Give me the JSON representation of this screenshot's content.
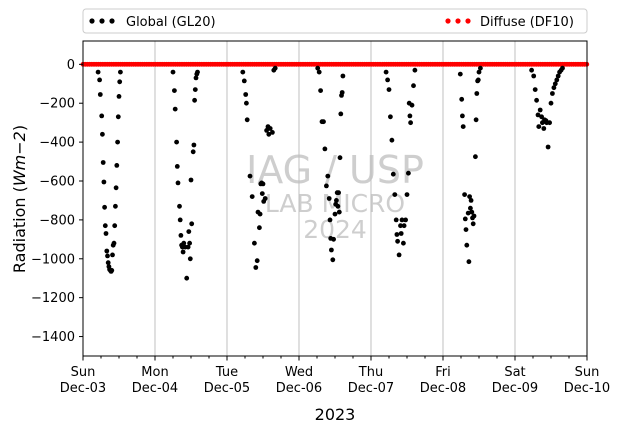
{
  "chart_data": {
    "type": "scatter",
    "title": "",
    "xlabel": "2023",
    "ylabel_prefix": "Radiation (",
    "ylabel_unit": "Wm−2",
    "ylabel_suffix": ")",
    "ylim": [
      -1500,
      120
    ],
    "xlim": [
      0,
      7
    ],
    "y_ticks": [
      0,
      -200,
      -400,
      -600,
      -800,
      -1000,
      -1200,
      -1400
    ],
    "x_ticks": [
      {
        "x": 0,
        "day": "Sun",
        "date": "Dec-03"
      },
      {
        "x": 1,
        "day": "Mon",
        "date": "Dec-04"
      },
      {
        "x": 2,
        "day": "Tue",
        "date": "Dec-05"
      },
      {
        "x": 3,
        "day": "Wed",
        "date": "Dec-06"
      },
      {
        "x": 4,
        "day": "Thu",
        "date": "Dec-07"
      },
      {
        "x": 5,
        "day": "Fri",
        "date": "Dec-08"
      },
      {
        "x": 6,
        "day": "Sat",
        "date": "Dec-09"
      },
      {
        "x": 7,
        "day": "Sun",
        "date": "Dec-10"
      }
    ],
    "grid": "vertical",
    "legend": "above",
    "series": [
      {
        "name": "Global (GL20)",
        "color": "#000000",
        "points": [
          [
            0.21,
            -40
          ],
          [
            0.23,
            -80
          ],
          [
            0.24,
            -155
          ],
          [
            0.26,
            -265
          ],
          [
            0.27,
            -360
          ],
          [
            0.28,
            -505
          ],
          [
            0.29,
            -605
          ],
          [
            0.3,
            -735
          ],
          [
            0.31,
            -830
          ],
          [
            0.32,
            -870
          ],
          [
            0.33,
            -960
          ],
          [
            0.34,
            -985
          ],
          [
            0.35,
            -1020
          ],
          [
            0.36,
            -1040
          ],
          [
            0.37,
            -1055
          ],
          [
            0.38,
            -1060
          ],
          [
            0.39,
            -1065
          ],
          [
            0.4,
            -1060
          ],
          [
            0.41,
            -980
          ],
          [
            0.42,
            -930
          ],
          [
            0.43,
            -920
          ],
          [
            0.44,
            -830
          ],
          [
            0.45,
            -730
          ],
          [
            0.46,
            -635
          ],
          [
            0.47,
            -520
          ],
          [
            0.48,
            -400
          ],
          [
            0.49,
            -270
          ],
          [
            0.5,
            -165
          ],
          [
            0.51,
            -90
          ],
          [
            0.52,
            -40
          ],
          [
            1.25,
            -40
          ],
          [
            1.27,
            -135
          ],
          [
            1.28,
            -230
          ],
          [
            1.3,
            -400
          ],
          [
            1.31,
            -525
          ],
          [
            1.32,
            -610
          ],
          [
            1.34,
            -730
          ],
          [
            1.35,
            -800
          ],
          [
            1.36,
            -880
          ],
          [
            1.37,
            -930
          ],
          [
            1.38,
            -940
          ],
          [
            1.39,
            -965
          ],
          [
            1.4,
            -920
          ],
          [
            1.42,
            -940
          ],
          [
            1.44,
            -1100
          ],
          [
            1.46,
            -940
          ],
          [
            1.47,
            -860
          ],
          [
            1.48,
            -920
          ],
          [
            1.49,
            -1000
          ],
          [
            1.5,
            -595
          ],
          [
            1.51,
            -820
          ],
          [
            1.53,
            -450
          ],
          [
            1.54,
            -415
          ],
          [
            1.55,
            -185
          ],
          [
            1.56,
            -130
          ],
          [
            1.57,
            -70
          ],
          [
            1.58,
            -50
          ],
          [
            1.59,
            -40
          ],
          [
            2.22,
            -40
          ],
          [
            2.24,
            -85
          ],
          [
            2.26,
            -155
          ],
          [
            2.27,
            -200
          ],
          [
            2.28,
            -285
          ],
          [
            2.32,
            -575
          ],
          [
            2.35,
            -680
          ],
          [
            2.38,
            -920
          ],
          [
            2.4,
            -1045
          ],
          [
            2.42,
            -1010
          ],
          [
            2.43,
            -760
          ],
          [
            2.45,
            -840
          ],
          [
            2.46,
            -770
          ],
          [
            2.47,
            -615
          ],
          [
            2.48,
            -610
          ],
          [
            2.49,
            -665
          ],
          [
            2.5,
            -615
          ],
          [
            2.51,
            -705
          ],
          [
            2.53,
            -690
          ],
          [
            2.55,
            -340
          ],
          [
            2.57,
            -320
          ],
          [
            2.58,
            -360
          ],
          [
            2.6,
            -330
          ],
          [
            2.63,
            -350
          ],
          [
            2.65,
            -30
          ],
          [
            2.67,
            -20
          ],
          [
            3.26,
            -20
          ],
          [
            3.28,
            -40
          ],
          [
            3.3,
            -135
          ],
          [
            3.32,
            -295
          ],
          [
            3.34,
            -295
          ],
          [
            3.36,
            -435
          ],
          [
            3.38,
            -625
          ],
          [
            3.4,
            -575
          ],
          [
            3.42,
            -690
          ],
          [
            3.43,
            -800
          ],
          [
            3.44,
            -895
          ],
          [
            3.45,
            -955
          ],
          [
            3.47,
            -1005
          ],
          [
            3.48,
            -900
          ],
          [
            3.5,
            -770
          ],
          [
            3.51,
            -720
          ],
          [
            3.52,
            -700
          ],
          [
            3.53,
            -660
          ],
          [
            3.54,
            -730
          ],
          [
            3.55,
            -660
          ],
          [
            3.56,
            -760
          ],
          [
            3.57,
            -480
          ],
          [
            3.58,
            -255
          ],
          [
            3.59,
            -160
          ],
          [
            3.6,
            -145
          ],
          [
            3.61,
            -60
          ],
          [
            4.21,
            -40
          ],
          [
            4.23,
            -80
          ],
          [
            4.25,
            -130
          ],
          [
            4.27,
            -270
          ],
          [
            4.29,
            -390
          ],
          [
            4.31,
            -565
          ],
          [
            4.33,
            -670
          ],
          [
            4.35,
            -800
          ],
          [
            4.36,
            -875
          ],
          [
            4.37,
            -910
          ],
          [
            4.39,
            -980
          ],
          [
            4.41,
            -830
          ],
          [
            4.42,
            -870
          ],
          [
            4.43,
            -800
          ],
          [
            4.45,
            -920
          ],
          [
            4.46,
            -830
          ],
          [
            4.48,
            -800
          ],
          [
            4.5,
            -670
          ],
          [
            4.52,
            -560
          ],
          [
            4.53,
            -200
          ],
          [
            4.54,
            -265
          ],
          [
            4.55,
            -300
          ],
          [
            4.57,
            -210
          ],
          [
            4.59,
            -110
          ],
          [
            4.61,
            -30
          ],
          [
            5.24,
            -50
          ],
          [
            5.26,
            -180
          ],
          [
            5.27,
            -265
          ],
          [
            5.28,
            -320
          ],
          [
            5.3,
            -670
          ],
          [
            5.31,
            -795
          ],
          [
            5.32,
            -850
          ],
          [
            5.33,
            -930
          ],
          [
            5.35,
            -765
          ],
          [
            5.36,
            -1015
          ],
          [
            5.37,
            -680
          ],
          [
            5.38,
            -740
          ],
          [
            5.39,
            -700
          ],
          [
            5.4,
            -760
          ],
          [
            5.41,
            -790
          ],
          [
            5.42,
            -820
          ],
          [
            5.43,
            -780
          ],
          [
            5.45,
            -475
          ],
          [
            5.46,
            -285
          ],
          [
            5.47,
            -150
          ],
          [
            5.48,
            -85
          ],
          [
            5.49,
            -80
          ],
          [
            5.5,
            -40
          ],
          [
            5.52,
            -20
          ],
          [
            6.23,
            -30
          ],
          [
            6.26,
            -60
          ],
          [
            6.28,
            -130
          ],
          [
            6.3,
            -185
          ],
          [
            6.32,
            -260
          ],
          [
            6.33,
            -320
          ],
          [
            6.35,
            -235
          ],
          [
            6.37,
            -270
          ],
          [
            6.38,
            -300
          ],
          [
            6.4,
            -330
          ],
          [
            6.41,
            -285
          ],
          [
            6.43,
            -290
          ],
          [
            6.44,
            -300
          ],
          [
            6.46,
            -425
          ],
          [
            6.48,
            -300
          ],
          [
            6.5,
            -200
          ],
          [
            6.52,
            -150
          ],
          [
            6.54,
            -120
          ],
          [
            6.56,
            -100
          ],
          [
            6.58,
            -80
          ],
          [
            6.6,
            -60
          ],
          [
            6.62,
            -40
          ],
          [
            6.64,
            -30
          ],
          [
            6.66,
            -20
          ]
        ]
      },
      {
        "name": "Diffuse (DF10)",
        "color": "#ff0000",
        "y_value": 0,
        "x_range": [
          0,
          7
        ]
      }
    ],
    "watermark": {
      "line1": "IAG / USP",
      "line2": "LAB MICRO",
      "line3": "2024"
    }
  }
}
